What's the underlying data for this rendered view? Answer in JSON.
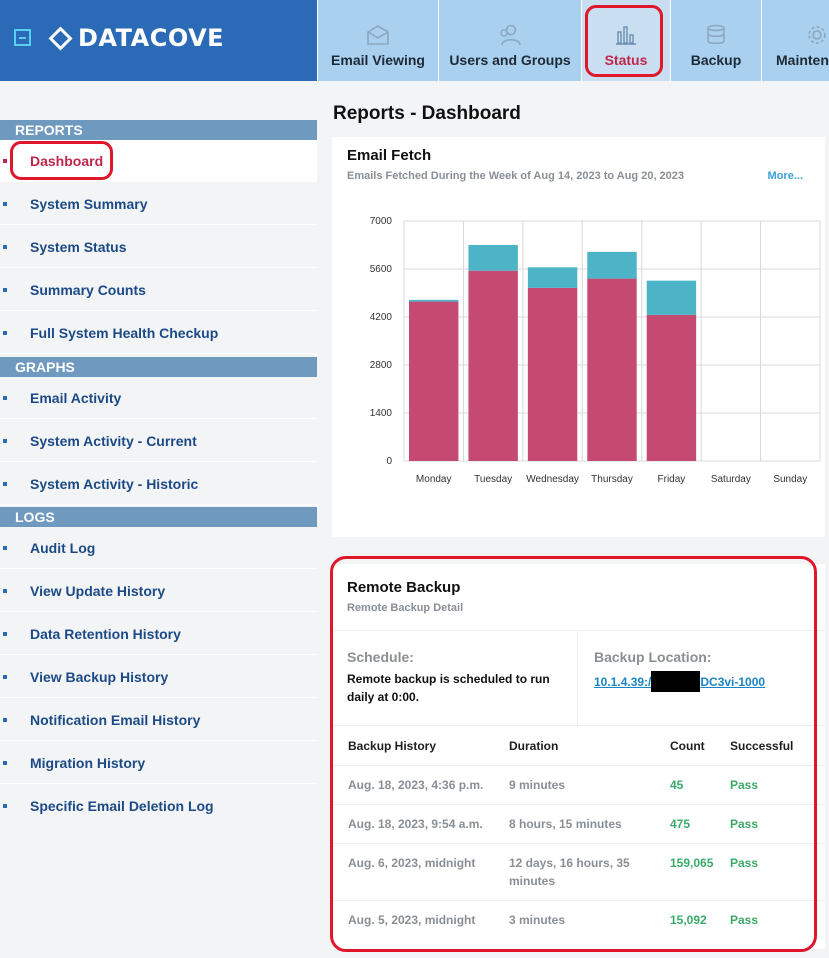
{
  "header": {
    "logo": "DATACOVE",
    "tabs": [
      {
        "label": "Email Viewing",
        "icon": "envelope-icon"
      },
      {
        "label": "Users and Groups",
        "icon": "users-icon"
      },
      {
        "label": "Status",
        "icon": "bar-chart-icon",
        "active": true
      },
      {
        "label": "Backup",
        "icon": "database-icon"
      },
      {
        "label": "Maintena",
        "icon": "gear-icon"
      }
    ]
  },
  "sidebar": {
    "sections": [
      {
        "title": "REPORTS",
        "items": [
          "Dashboard",
          "System Summary",
          "System Status",
          "Summary Counts",
          "Full System Health Checkup"
        ]
      },
      {
        "title": "GRAPHS",
        "items": [
          "Email Activity",
          "System Activity - Current",
          "System Activity - Historic"
        ]
      },
      {
        "title": "LOGS",
        "items": [
          "Audit Log",
          "View Update History",
          "Data Retention History",
          "View Backup History",
          "Notification Email History",
          "Migration History",
          "Specific Email Deletion Log"
        ]
      }
    ],
    "active_item": "Dashboard"
  },
  "main": {
    "page_title": "Reports - Dashboard",
    "email_fetch": {
      "title": "Email Fetch",
      "subtitle": "Emails Fetched During the Week of Aug 14, 2023 to Aug 20, 2023",
      "more_link": "More..."
    },
    "remote_backup": {
      "title": "Remote Backup",
      "subtitle": "Remote Backup Detail",
      "schedule_label": "Schedule:",
      "schedule_text": "Remote backup is scheduled to run daily at 0:00.",
      "location_label": "Backup Location:",
      "location_prefix": "10.1.4.39:/",
      "location_suffix": "DC3vi-1000",
      "table": {
        "headers": [
          "Backup History",
          "Duration",
          "Count",
          "Successful"
        ],
        "rows": [
          {
            "date": "Aug. 18, 2023, 4:36 p.m.",
            "duration": "9 minutes",
            "count": "45",
            "status": "Pass"
          },
          {
            "date": "Aug. 18, 2023, 9:54 a.m.",
            "duration": "8 hours, 15 minutes",
            "count": "475",
            "status": "Pass"
          },
          {
            "date": "Aug. 6, 2023, midnight",
            "duration": "12 days, 16 hours, 35 minutes",
            "count": "159,065",
            "status": "Pass"
          },
          {
            "date": "Aug. 5, 2023, midnight",
            "duration": "3 minutes",
            "count": "15,092",
            "status": "Pass"
          }
        ]
      }
    }
  },
  "chart_data": {
    "type": "bar",
    "stacked": true,
    "categories": [
      "Monday",
      "Tuesday",
      "Wednesday",
      "Thursday",
      "Friday",
      "Saturday",
      "Sunday"
    ],
    "series": [
      {
        "values": [
          4650,
          5550,
          5050,
          5320,
          4260,
          0,
          0
        ],
        "color": "#c44a72"
      },
      {
        "values": [
          50,
          750,
          600,
          780,
          1000,
          0,
          0
        ],
        "color": "#4db3c7"
      }
    ],
    "ylim": [
      0,
      7000
    ],
    "yticks": [
      0,
      1400,
      2800,
      4200,
      5600,
      7000
    ],
    "grid": true,
    "legend": "none"
  },
  "colors": {
    "brand": "#2a6ab7",
    "nav_bg": "#a9d0ee",
    "accent": "#c0264b",
    "pass_green": "#3aaa6a",
    "link": "#1a84c5",
    "highlight_box": "#e0162b"
  }
}
